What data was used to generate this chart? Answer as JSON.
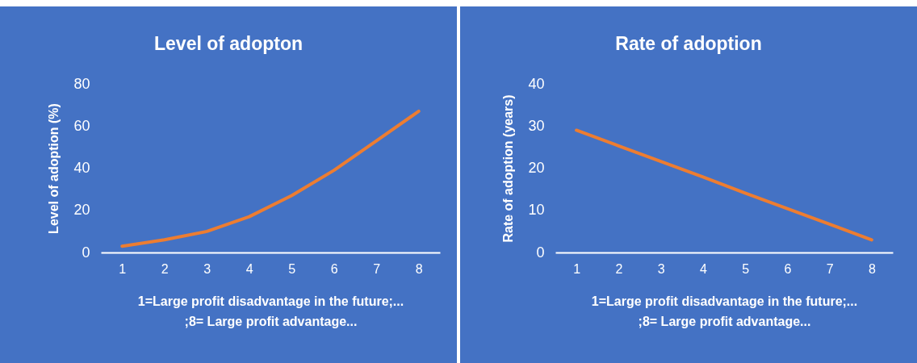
{
  "chart_data": [
    {
      "type": "line",
      "title": "Level of adopton",
      "xlabel": "1=Large profit disadvantage in the future;...\n;8= Large profit advantage...",
      "ylabel": "Level of adoption (%)",
      "categories": [
        "1",
        "2",
        "3",
        "4",
        "5",
        "6",
        "7",
        "8"
      ],
      "series": [
        {
          "color": "#ed7d31",
          "values": [
            3,
            6,
            10,
            17,
            27,
            39,
            53,
            67
          ]
        }
      ],
      "ylim": [
        0,
        80
      ],
      "yticks": [
        0,
        20,
        40,
        60,
        80
      ],
      "grid": false,
      "legend": false,
      "marker": "none",
      "line_style": "solid"
    },
    {
      "type": "line",
      "title": "Rate of adoption",
      "xlabel": "1=Large profit disadvantage in the future;...\n;8= Large profit advantage...",
      "ylabel": "Rate of adoption (years)",
      "categories": [
        "1",
        "2",
        "3",
        "4",
        "5",
        "6",
        "7",
        "8"
      ],
      "series": [
        {
          "color": "#ed7d31",
          "values": [
            29,
            25.3,
            21.6,
            17.9,
            14.1,
            10.4,
            6.7,
            3
          ]
        }
      ],
      "ylim": [
        0,
        40
      ],
      "yticks": [
        0,
        10,
        20,
        30,
        40
      ],
      "grid": false,
      "legend": false,
      "marker": "none",
      "line_style": "solid"
    }
  ]
}
